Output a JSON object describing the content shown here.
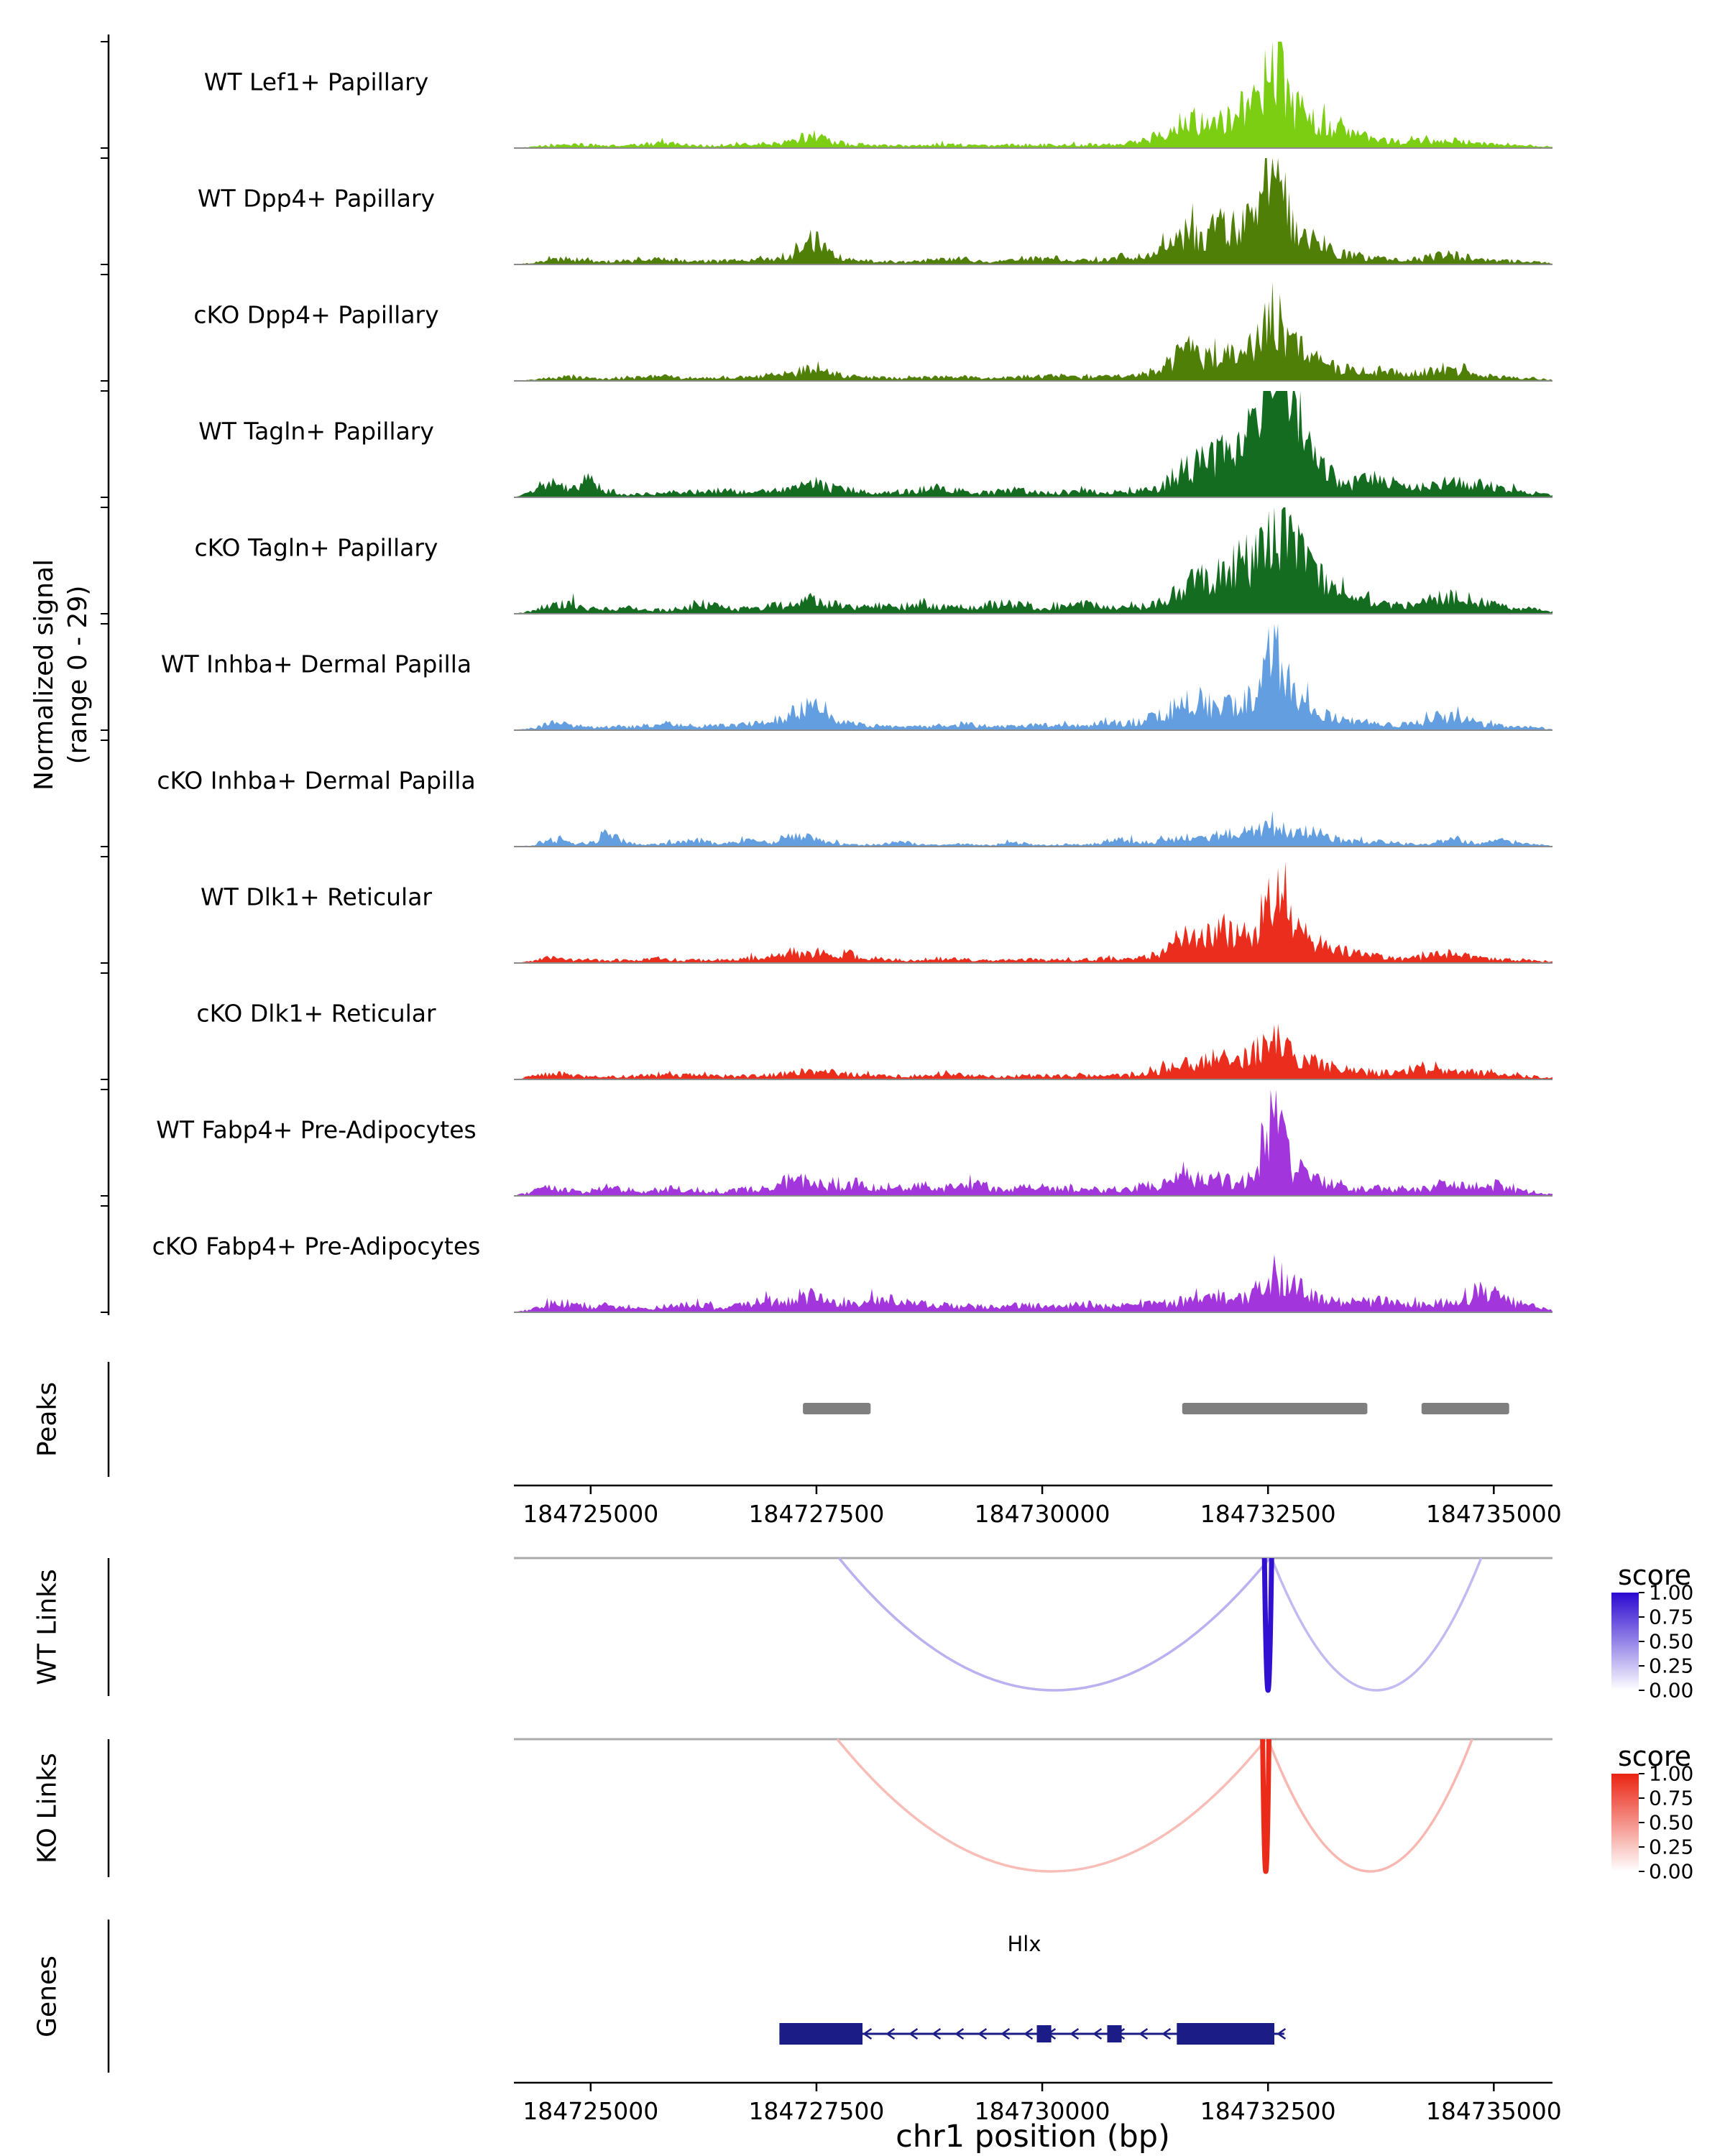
{
  "chart_data": {
    "type": "area",
    "description": "Genome browser coverage tracks (scATAC-style) at the Hlx locus",
    "region": {
      "chrom": "chr1",
      "start": 184724150,
      "end": 184735650,
      "bin_bp": 200
    },
    "ylabel_line1": "Normalized signal",
    "ylabel_line2": "(range 0 - 29)",
    "ylim": [
      0,
      29
    ],
    "xlabel": "chr1 position (bp)",
    "x_ticks": [
      {
        "bp": 184725000,
        "label": "184725000"
      },
      {
        "bp": 184727500,
        "label": "184727500"
      },
      {
        "bp": 184730000,
        "label": "184730000"
      },
      {
        "bp": 184732500,
        "label": "184732500"
      },
      {
        "bp": 184735000,
        "label": "184735000"
      }
    ],
    "tracks": [
      {
        "label": "WT Lef1+ Papillary",
        "color": "#7CCE12",
        "values": [
          0,
          0.3,
          0.6,
          1,
          0.8,
          0.6,
          0.7,
          0.9,
          1.8,
          1,
          0.7,
          0.6,
          0.8,
          1,
          1.2,
          1.6,
          3.8,
          2,
          1,
          0.9,
          0.7,
          0.6,
          0.8,
          1,
          0.9,
          0.7,
          0.6,
          0.8,
          1,
          0.9,
          0.8,
          1,
          1.1,
          1.2,
          2,
          4.5,
          6,
          7.5,
          7,
          9.5,
          13,
          26,
          11,
          7.5,
          5.5,
          4,
          2.8,
          2,
          1.6,
          1.8,
          2.2,
          1.8,
          1.2,
          1,
          1,
          0.8,
          0.3
        ]
      },
      {
        "label": "WT Dpp4+ Papillary",
        "color": "#507F08",
        "values": [
          0,
          0.4,
          1.2,
          1.5,
          1,
          0.8,
          1,
          1.2,
          1.5,
          1,
          0.8,
          0.9,
          1.2,
          1.5,
          1.8,
          2.5,
          7.5,
          3,
          1.2,
          1,
          0.8,
          0.7,
          1,
          1.4,
          1.6,
          1,
          0.8,
          1,
          1.5,
          1.8,
          1.2,
          1,
          1.2,
          1.5,
          2,
          4,
          8.5,
          7,
          11,
          9,
          12,
          27,
          10,
          6.5,
          4,
          2.5,
          1.8,
          1.4,
          1.2,
          1.5,
          2.8,
          2.2,
          1.4,
          1,
          0.9,
          0.7,
          0.3
        ]
      },
      {
        "label": "cKO Dpp4+ Papillary",
        "color": "#507F08",
        "values": [
          0,
          0.3,
          0.8,
          1,
          0.8,
          0.7,
          0.9,
          1,
          1.2,
          0.9,
          0.7,
          0.8,
          1,
          1.2,
          1.5,
          2,
          3.2,
          2.2,
          1.2,
          1,
          0.8,
          0.7,
          0.9,
          1.1,
          1.2,
          0.9,
          0.8,
          0.9,
          1.2,
          1.3,
          1,
          0.9,
          1.1,
          1.3,
          1.8,
          3.5,
          7.5,
          6,
          8,
          7,
          10,
          18,
          9,
          6.5,
          4.5,
          3,
          2.2,
          2.5,
          2,
          2.4,
          3,
          2.4,
          1.6,
          1.2,
          1,
          0.8,
          0.3
        ]
      },
      {
        "label": "WT Tagln+ Papillary",
        "color": "#136C1F",
        "values": [
          0,
          1.5,
          3.5,
          2,
          5.5,
          2,
          0.8,
          0.8,
          1.5,
          1.2,
          1.5,
          1.8,
          1.5,
          1.2,
          1.8,
          2.2,
          3.8,
          2.5,
          2.8,
          1.5,
          1.2,
          1.5,
          2,
          2.5,
          1.8,
          1.2,
          1.5,
          1.8,
          1.5,
          1.2,
          1.5,
          1.8,
          1.2,
          1.5,
          1.8,
          3,
          7.5,
          9,
          12,
          14,
          17,
          29,
          28,
          10,
          6,
          3.5,
          5,
          4.5,
          2.5,
          3,
          4,
          3.5,
          3.8,
          2.5,
          1.8,
          1.2,
          0.5
        ]
      },
      {
        "label": "cKO Tagln+ Papillary",
        "color": "#136C1F",
        "values": [
          0,
          0.8,
          2.5,
          2.8,
          1.5,
          1.2,
          1.5,
          1.2,
          1,
          1.5,
          2.8,
          1.8,
          1.2,
          1.5,
          2,
          2.5,
          3.8,
          2.8,
          1.5,
          1.8,
          2.2,
          1.5,
          2.8,
          2,
          1.5,
          1.8,
          2.5,
          3,
          2,
          1.5,
          2,
          2.8,
          1.8,
          1.5,
          2,
          3.5,
          7,
          8.5,
          10,
          13,
          14.5,
          24,
          21,
          12,
          6.5,
          4,
          3,
          2.5,
          2,
          3.5,
          5,
          4,
          3.5,
          2.5,
          1.8,
          1.2,
          0.5
        ]
      },
      {
        "label": "WT Inhba+ Dermal Papilla",
        "color": "#639FE0",
        "values": [
          0,
          0.6,
          1.8,
          1.5,
          1,
          0.8,
          1,
          1.2,
          1.8,
          1.2,
          1,
          1.2,
          1.5,
          1.8,
          2.5,
          5,
          6.8,
          4,
          2,
          1.2,
          1,
          0.8,
          1,
          1.5,
          1.8,
          1.2,
          1,
          1.2,
          1.5,
          1.2,
          1.2,
          1.5,
          1.8,
          2,
          2.5,
          4.5,
          6.5,
          8,
          6,
          7,
          9,
          22,
          9.5,
          5,
          3.5,
          2.5,
          2,
          1.8,
          1.5,
          2,
          3.8,
          3,
          1.8,
          1.2,
          1,
          0.8,
          0.3
        ]
      },
      {
        "label": "cKO Inhba+ Dermal Papilla",
        "color": "#639FE0",
        "values": [
          0,
          0.4,
          2.2,
          1,
          0.5,
          3.8,
          1.2,
          0.4,
          0.8,
          1.2,
          1.8,
          0.6,
          1.2,
          1.8,
          1,
          2.8,
          2.2,
          1.2,
          0.5,
          0.4,
          0.8,
          1.2,
          0.5,
          0.4,
          0.8,
          0.5,
          0.4,
          1.2,
          0.5,
          0.4,
          0.8,
          0.5,
          1.5,
          1.8,
          1.2,
          1.5,
          2.5,
          2,
          3,
          3.5,
          4.5,
          5,
          3.5,
          4,
          2.5,
          1.5,
          1.2,
          1.5,
          0.8,
          0.5,
          1.5,
          2,
          0.8,
          1.8,
          1.2,
          0.6,
          0.2
        ]
      },
      {
        "label": "WT Dlk1+ Reticular",
        "color": "#EA2D1C",
        "values": [
          0,
          0.6,
          1.5,
          1,
          0.8,
          0.6,
          0.8,
          1,
          1.2,
          0.8,
          0.7,
          0.8,
          1,
          1.4,
          1.8,
          2.2,
          2.8,
          2.2,
          2.4,
          1.5,
          1,
          0.8,
          1,
          1.2,
          1,
          0.8,
          0.7,
          0.8,
          1,
          0.8,
          0.8,
          1,
          1.2,
          1,
          1.5,
          3,
          5.5,
          6.5,
          8,
          7,
          9.5,
          18,
          10,
          6,
          4.5,
          3,
          2,
          1.5,
          1.2,
          1.5,
          2.8,
          2.2,
          1.4,
          1,
          0.8,
          0.6,
          0.3
        ]
      },
      {
        "label": "cKO Dlk1+ Reticular",
        "color": "#EA2D1C",
        "values": [
          0,
          0.8,
          1.8,
          1.2,
          0.8,
          0.7,
          0.9,
          1,
          1.2,
          0.9,
          1.5,
          1,
          0.8,
          1,
          1.4,
          1.8,
          2.2,
          1.8,
          1.5,
          1.2,
          1,
          0.9,
          1.1,
          1.3,
          1.1,
          0.9,
          0.8,
          0.9,
          1.1,
          1,
          0.9,
          1.1,
          1.2,
          1,
          1.4,
          2.5,
          4.5,
          5,
          5.5,
          5,
          7,
          12,
          7.5,
          5,
          4,
          2.8,
          2,
          1.8,
          2.5,
          2.8,
          2.2,
          1.8,
          2,
          1.4,
          1,
          0.8,
          0.3
        ]
      },
      {
        "label": "WT Fabp4+ Pre-Adipocytes",
        "color": "#A236DC",
        "values": [
          0,
          1.2,
          2.2,
          1.5,
          1,
          2.8,
          1.2,
          1,
          1.8,
          2,
          1.2,
          1,
          1.5,
          1.8,
          2.8,
          4.5,
          3.8,
          2.5,
          2.8,
          2.5,
          1.8,
          2.2,
          2.8,
          2,
          2.5,
          2.8,
          2,
          1.8,
          2.5,
          2.2,
          1.8,
          2,
          1.5,
          1.8,
          2.8,
          3,
          6.5,
          4,
          4.5,
          3.5,
          5,
          26,
          7.5,
          5,
          3.5,
          2,
          1.8,
          2.2,
          1.5,
          1.8,
          3.2,
          2.8,
          1.8,
          2.8,
          1.5,
          1,
          0.4
        ]
      },
      {
        "label": "cKO Fabp4+ Pre-Adipocytes",
        "color": "#A236DC",
        "values": [
          0,
          0.8,
          2,
          2.5,
          1.2,
          1.8,
          1.5,
          1,
          1.5,
          1.8,
          2.2,
          1.2,
          1.8,
          2.5,
          3.5,
          3,
          4.2,
          3,
          2.2,
          2.8,
          3.5,
          2.5,
          2.8,
          2,
          1.5,
          1.8,
          1.5,
          2,
          1.8,
          1.5,
          1.8,
          2.2,
          1.5,
          1.8,
          2,
          2.2,
          3,
          3.5,
          4.5,
          3.5,
          5.5,
          10,
          7,
          4.5,
          3,
          2.5,
          2.8,
          3,
          2.2,
          2,
          2.5,
          2.2,
          6,
          4.5,
          2.5,
          1.5,
          0.5
        ]
      }
    ],
    "peaks_label": "Peaks",
    "peaks": [
      {
        "start": 184727350,
        "end": 184728100
      },
      {
        "start": 184731550,
        "end": 184733600
      },
      {
        "start": 184734200,
        "end": 184735170
      }
    ],
    "links": {
      "wt": {
        "label": "WT Links",
        "score_title": "score",
        "color_high": "#2B09D0",
        "legend_ticks": [
          "1.00",
          "0.75",
          "0.50",
          "0.25",
          "0.00"
        ],
        "arcs": [
          {
            "start": 184727750,
            "end": 184732520,
            "score": 0.32
          },
          {
            "start": 184732540,
            "end": 184734860,
            "score": 0.28
          },
          {
            "start": 184732460,
            "end": 184732540,
            "score": 0.97
          }
        ]
      },
      "ko": {
        "label": "KO Links",
        "score_title": "score",
        "color_high": "#EA2412",
        "legend_ticks": [
          "1.00",
          "0.75",
          "0.50",
          "0.25",
          "0.00"
        ],
        "arcs": [
          {
            "start": 184727730,
            "end": 184732480,
            "score": 0.3
          },
          {
            "start": 184732500,
            "end": 184734760,
            "score": 0.33
          },
          {
            "start": 184732440,
            "end": 184732510,
            "score": 0.97
          }
        ]
      }
    },
    "genes": {
      "label": "Genes",
      "items": [
        {
          "name": "Hlx",
          "strand": "-",
          "color": "#1C1C86",
          "line_start": 184727090,
          "line_end": 184732680,
          "exons": [
            {
              "start": 184727090,
              "end": 184728010,
              "size": "tall"
            },
            {
              "start": 184729940,
              "end": 184730100,
              "size": "mid"
            },
            {
              "start": 184730720,
              "end": 184730880,
              "size": "mid"
            },
            {
              "start": 184731490,
              "end": 184732570,
              "size": "tall"
            }
          ]
        }
      ]
    }
  }
}
